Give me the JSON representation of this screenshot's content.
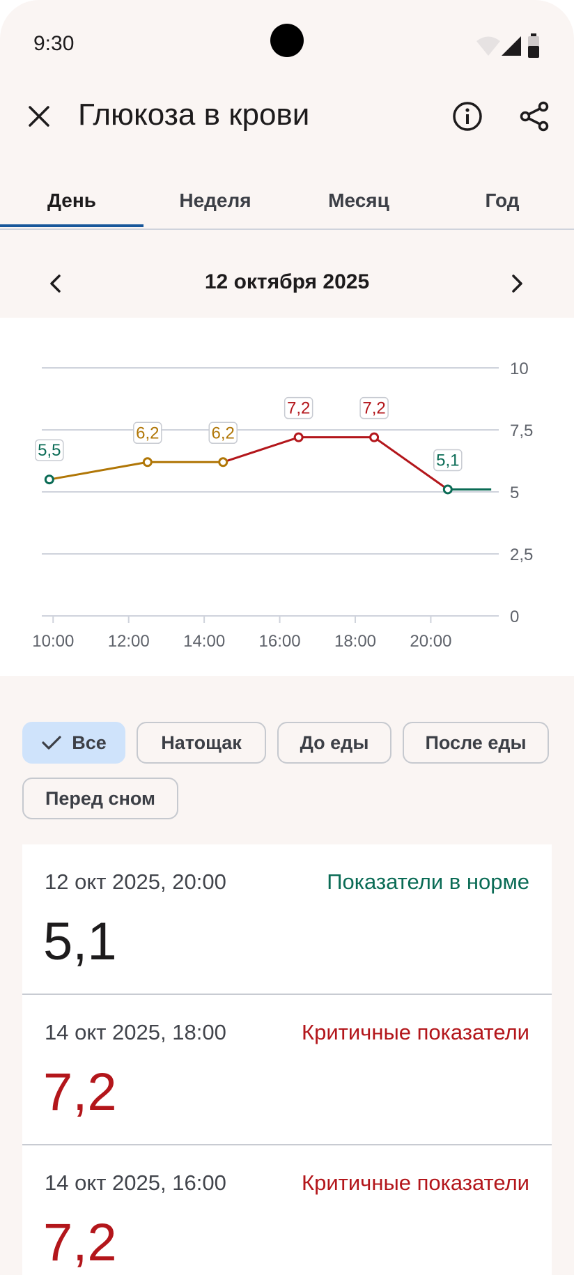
{
  "status": {
    "time": "9:30"
  },
  "header": {
    "title": "Глюкоза в крови"
  },
  "tabs": [
    {
      "label": "День",
      "active": true
    },
    {
      "label": "Неделя",
      "active": false
    },
    {
      "label": "Месяц",
      "active": false
    },
    {
      "label": "Год",
      "active": false
    }
  ],
  "date_nav": {
    "date": "12 октября 2025"
  },
  "chart_data": {
    "type": "line",
    "title": "",
    "xlabel": "",
    "ylabel": "",
    "x_ticks": [
      "10:00",
      "12:00",
      "14:00",
      "16:00",
      "18:00",
      "20:00"
    ],
    "y_ticks": [
      "0",
      "2,5",
      "5",
      "7,5",
      "10"
    ],
    "ylim": [
      0,
      10
    ],
    "xlim": [
      9.7,
      21.8
    ],
    "grid": true,
    "points": [
      {
        "x": 9.9,
        "y": 5.5,
        "label": "5,5",
        "status": "ok"
      },
      {
        "x": 12.5,
        "y": 6.2,
        "label": "6,2",
        "status": "warn"
      },
      {
        "x": 14.5,
        "y": 6.2,
        "label": "6,2",
        "status": "warn"
      },
      {
        "x": 16.5,
        "y": 7.2,
        "label": "7,2",
        "status": "crit"
      },
      {
        "x": 18.5,
        "y": 7.2,
        "label": "7,2",
        "status": "crit"
      },
      {
        "x": 20.45,
        "y": 5.1,
        "label": "5,1",
        "status": "ok"
      }
    ],
    "trail_end": {
      "x": 21.6,
      "y": 5.1
    },
    "colors": {
      "ok": "#0a6b55",
      "warn": "#b07606",
      "crit": "#b3161b",
      "grid": "#cfd3dc",
      "axis_text": "#5f636b"
    }
  },
  "filters": [
    {
      "label": "Все",
      "selected": true
    },
    {
      "label": "Натощак",
      "selected": false
    },
    {
      "label": "До еды",
      "selected": false
    },
    {
      "label": "После еды",
      "selected": false
    },
    {
      "label": "Перед сном",
      "selected": false
    }
  ],
  "readings": [
    {
      "datetime": "12 окт 2025, 20:00",
      "status": "Показатели в норме",
      "value": "5,1",
      "level": "ok"
    },
    {
      "datetime": "14 окт 2025, 18:00",
      "status": "Критичные показатели",
      "value": "7,2",
      "level": "crit"
    },
    {
      "datetime": "14 окт 2025, 16:00",
      "status": "Критичные показатели",
      "value": "7,2",
      "level": "crit"
    }
  ],
  "icons": {
    "close": "close-icon",
    "info": "info-icon",
    "share": "share-icon",
    "prev": "chevron-left-icon",
    "next": "chevron-right-icon",
    "check": "check-icon"
  }
}
